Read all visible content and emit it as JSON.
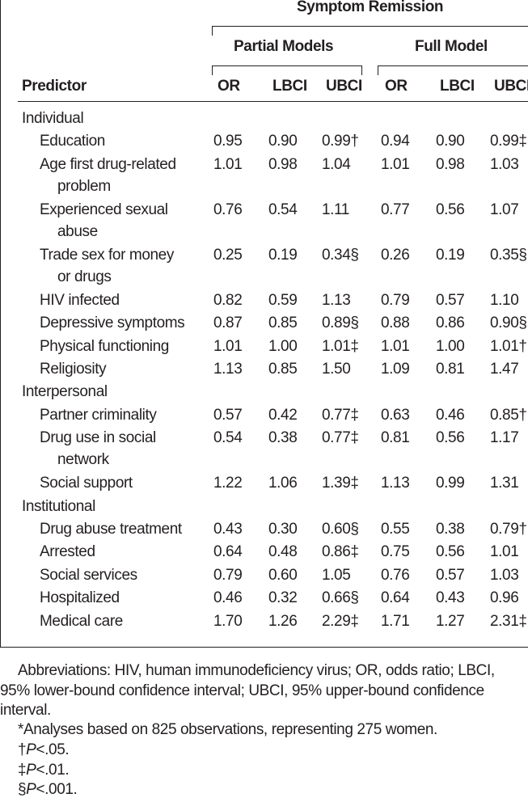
{
  "header": {
    "spanner": "Symptom Remission",
    "groups": [
      "Partial Models",
      "Full Model"
    ],
    "predictor": "Predictor",
    "columns": [
      "OR",
      "LBCI",
      "UBCI",
      "OR",
      "LBCI",
      "UBCI"
    ]
  },
  "table": {
    "sections": [
      {
        "name": "Individual",
        "rows": [
          {
            "label": [
              "Education"
            ],
            "cells": [
              "0.95",
              "0.90",
              "0.99†",
              "0.94",
              "0.90",
              "0.99‡"
            ]
          },
          {
            "label": [
              "Age first drug-related",
              "problem"
            ],
            "cells": [
              "1.01",
              "0.98",
              "1.04",
              "1.01",
              "0.98",
              "1.03"
            ]
          },
          {
            "label": [
              "Experienced sexual",
              "abuse"
            ],
            "cells": [
              "0.76",
              "0.54",
              "1.11",
              "0.77",
              "0.56",
              "1.07"
            ]
          },
          {
            "label": [
              "Trade sex for money",
              "or drugs"
            ],
            "cells": [
              "0.25",
              "0.19",
              "0.34§",
              "0.26",
              "0.19",
              "0.35§"
            ]
          },
          {
            "label": [
              "HIV infected"
            ],
            "cells": [
              "0.82",
              "0.59",
              "1.13",
              "0.79",
              "0.57",
              "1.10"
            ]
          },
          {
            "label": [
              "Depressive symptoms"
            ],
            "cells": [
              "0.87",
              "0.85",
              "0.89§",
              "0.88",
              "0.86",
              "0.90§"
            ]
          },
          {
            "label": [
              "Physical functioning"
            ],
            "cells": [
              "1.01",
              "1.00",
              "1.01‡",
              "1.01",
              "1.00",
              "1.01†"
            ]
          },
          {
            "label": [
              "Religiosity"
            ],
            "cells": [
              "1.13",
              "0.85",
              "1.50",
              "1.09",
              "0.81",
              "1.47"
            ]
          }
        ]
      },
      {
        "name": "Interpersonal",
        "rows": [
          {
            "label": [
              "Partner criminality"
            ],
            "cells": [
              "0.57",
              "0.42",
              "0.77‡",
              "0.63",
              "0.46",
              "0.85†"
            ]
          },
          {
            "label": [
              "Drug use in social",
              "network"
            ],
            "cells": [
              "0.54",
              "0.38",
              "0.77‡",
              "0.81",
              "0.56",
              "1.17"
            ]
          },
          {
            "label": [
              "Social support"
            ],
            "cells": [
              "1.22",
              "1.06",
              "1.39‡",
              "1.13",
              "0.99",
              "1.31"
            ]
          }
        ]
      },
      {
        "name": "Institutional",
        "rows": [
          {
            "label": [
              "Drug abuse treatment"
            ],
            "cells": [
              "0.43",
              "0.30",
              "0.60§",
              "0.55",
              "0.38",
              "0.79†"
            ]
          },
          {
            "label": [
              "Arrested"
            ],
            "cells": [
              "0.64",
              "0.48",
              "0.86‡",
              "0.75",
              "0.56",
              "1.01"
            ]
          },
          {
            "label": [
              "Social services"
            ],
            "cells": [
              "0.79",
              "0.60",
              "1.05",
              "0.76",
              "0.57",
              "1.03"
            ]
          },
          {
            "label": [
              "Hospitalized"
            ],
            "cells": [
              "0.46",
              "0.32",
              "0.66§",
              "0.64",
              "0.43",
              "0.96"
            ]
          },
          {
            "label": [
              "Medical care"
            ],
            "cells": [
              "1.70",
              "1.26",
              "2.29‡",
              "1.71",
              "1.27",
              "2.31‡"
            ]
          }
        ]
      }
    ]
  },
  "footnotes": {
    "abbreviations": "Abbreviations: HIV, human immunodeficiency virus; OR, odds ratio; LBCI, 95% lower-bound confidence interval; UBCI, 95% upper-bound confidence interval.",
    "analysis": "*Analyses based on 825 observations, representing 275 women.",
    "significance": [
      {
        "symbol": "†",
        "p": "P",
        "text": "<.05."
      },
      {
        "symbol": "‡",
        "p": "P",
        "text": "<.01."
      },
      {
        "symbol": "§",
        "p": "P",
        "text": "<.001."
      }
    ]
  }
}
